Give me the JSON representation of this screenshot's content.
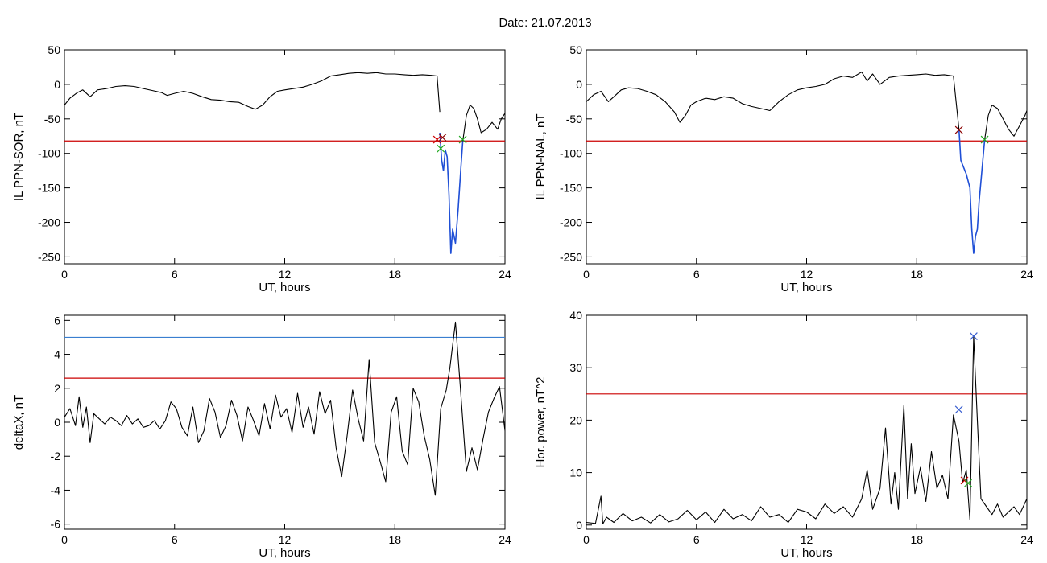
{
  "figure": {
    "title": "Date:  21.07.2013"
  },
  "chart_data": [
    {
      "type": "line",
      "panel": "top-left",
      "xlabel": "UT, hours",
      "ylabel": "IL PPN-SOR, nT",
      "xlim": [
        0,
        24
      ],
      "ylim": [
        -260,
        50
      ],
      "xticks": [
        0,
        6,
        12,
        18,
        24
      ],
      "yticks": [
        50,
        0,
        -50,
        -100,
        -150,
        -200,
        -250
      ],
      "grid": false,
      "series": [
        {
          "color": "#000000",
          "x": [
            0,
            0.3,
            0.7,
            1.0,
            1.4,
            1.8,
            2.3,
            2.8,
            3.3,
            3.8,
            4.3,
            4.8,
            5.3,
            5.6,
            6.0,
            6.5,
            7.0,
            7.5,
            8.0,
            8.5,
            9.0,
            9.5,
            10.0,
            10.4,
            10.8,
            11.2,
            11.6,
            12.0,
            12.5,
            13.0,
            13.5,
            14.0,
            14.5,
            15.0,
            15.5,
            16.0,
            16.5,
            17.0,
            17.5,
            18.0,
            18.5,
            19.0,
            19.5,
            20.0,
            20.3,
            20.45
          ],
          "values": [
            -30,
            -20,
            -12,
            -8,
            -18,
            -8,
            -6,
            -3,
            -2,
            -3,
            -6,
            -9,
            -12,
            -16,
            -13,
            -10,
            -13,
            -18,
            -22,
            -23,
            -25,
            -26,
            -32,
            -36,
            -30,
            -18,
            -10,
            -8,
            -6,
            -4,
            0,
            5,
            12,
            14,
            16,
            17,
            16,
            17,
            15,
            15,
            14,
            13,
            14,
            13,
            12,
            -40
          ]
        },
        {
          "color": "#1f4fd6",
          "x": [
            20.45,
            20.55,
            20.65,
            20.75,
            20.85,
            20.95,
            21.05,
            21.15,
            21.3,
            21.45,
            21.6,
            21.7
          ],
          "values": [
            -70,
            -110,
            -125,
            -95,
            -105,
            -160,
            -245,
            -210,
            -230,
            -180,
            -120,
            -82
          ]
        },
        {
          "color": "#000000",
          "x": [
            21.7,
            21.9,
            22.1,
            22.3,
            22.5,
            22.7,
            23.0,
            23.3,
            23.6,
            23.8,
            24.0
          ],
          "values": [
            -82,
            -45,
            -30,
            -35,
            -50,
            -70,
            -65,
            -55,
            -65,
            -50,
            -42
          ]
        }
      ],
      "threshold_lines": [
        {
          "y": -82,
          "color": "#cc0000"
        }
      ],
      "markers": [
        {
          "x": 20.3,
          "y": -80,
          "color": "#cc0000"
        },
        {
          "x": 20.6,
          "y": -77,
          "color": "#8b0000"
        },
        {
          "x": 20.5,
          "y": -93,
          "color": "#22aa22"
        },
        {
          "x": 21.7,
          "y": -80,
          "color": "#22aa22"
        }
      ]
    },
    {
      "type": "line",
      "panel": "top-right",
      "xlabel": "UT, hours",
      "ylabel": "IL PPN-NAL, nT",
      "xlim": [
        0,
        24
      ],
      "ylim": [
        -260,
        50
      ],
      "xticks": [
        0,
        6,
        12,
        18,
        24
      ],
      "yticks": [
        50,
        0,
        -50,
        -100,
        -150,
        -200,
        -250
      ],
      "grid": false,
      "series": [
        {
          "color": "#000000",
          "x": [
            0,
            0.4,
            0.8,
            1.2,
            1.5,
            1.9,
            2.3,
            2.8,
            3.3,
            3.8,
            4.3,
            4.8,
            5.1,
            5.4,
            5.7,
            6.0,
            6.5,
            7.0,
            7.5,
            8.0,
            8.5,
            9.0,
            9.5,
            10.0,
            10.5,
            11.0,
            11.5,
            12.0,
            12.5,
            13.0,
            13.5,
            14.0,
            14.5,
            15.0,
            15.3,
            15.6,
            16.0,
            16.5,
            17.0,
            17.5,
            18.0,
            18.5,
            19.0,
            19.5,
            20.0,
            20.3
          ],
          "values": [
            -25,
            -15,
            -10,
            -25,
            -18,
            -8,
            -5,
            -6,
            -10,
            -15,
            -25,
            -40,
            -55,
            -45,
            -30,
            -25,
            -20,
            -22,
            -18,
            -20,
            -28,
            -32,
            -35,
            -38,
            -25,
            -15,
            -8,
            -5,
            -3,
            0,
            8,
            12,
            10,
            18,
            5,
            15,
            0,
            10,
            12,
            13,
            14,
            15,
            13,
            14,
            12,
            -65
          ]
        },
        {
          "color": "#1f4fd6",
          "x": [
            20.3,
            20.4,
            20.55,
            20.7,
            20.9,
            21.0,
            21.1,
            21.2,
            21.3,
            21.4,
            21.6,
            21.7
          ],
          "values": [
            -65,
            -110,
            -120,
            -130,
            -150,
            -210,
            -245,
            -220,
            -210,
            -170,
            -110,
            -80
          ]
        },
        {
          "color": "#000000",
          "x": [
            21.7,
            21.9,
            22.1,
            22.4,
            22.7,
            23.0,
            23.3,
            23.6,
            23.9,
            24.0
          ],
          "values": [
            -80,
            -45,
            -30,
            -35,
            -50,
            -65,
            -75,
            -60,
            -45,
            -38
          ]
        }
      ],
      "threshold_lines": [
        {
          "y": -82,
          "color": "#cc0000"
        }
      ],
      "markers": [
        {
          "x": 20.3,
          "y": -66,
          "color": "#8b0000"
        },
        {
          "x": 21.7,
          "y": -80,
          "color": "#22aa22"
        }
      ]
    },
    {
      "type": "line",
      "panel": "bottom-left",
      "xlabel": "UT, hours",
      "ylabel": "deltaX, nT",
      "xlim": [
        0,
        24
      ],
      "ylim": [
        -6.3,
        6.3
      ],
      "xticks": [
        0,
        6,
        12,
        18,
        24
      ],
      "yticks": [
        6,
        4,
        2,
        0,
        -2,
        -4,
        -6
      ],
      "grid": false,
      "series": [
        {
          "color": "#000000",
          "x": [
            0,
            0.3,
            0.6,
            0.8,
            1.0,
            1.2,
            1.4,
            1.6,
            1.9,
            2.2,
            2.5,
            2.8,
            3.1,
            3.4,
            3.7,
            4.0,
            4.3,
            4.6,
            4.9,
            5.2,
            5.5,
            5.8,
            6.1,
            6.4,
            6.7,
            7.0,
            7.3,
            7.6,
            7.9,
            8.2,
            8.5,
            8.8,
            9.1,
            9.4,
            9.7,
            10.0,
            10.3,
            10.6,
            10.9,
            11.2,
            11.5,
            11.8,
            12.1,
            12.4,
            12.7,
            13.0,
            13.3,
            13.6,
            13.9,
            14.2,
            14.5,
            14.8,
            15.1,
            15.4,
            15.7,
            16.0,
            16.3,
            16.6,
            16.9,
            17.2,
            17.5,
            17.8,
            18.1,
            18.4,
            18.7,
            19.0,
            19.3,
            19.6,
            19.9,
            20.2,
            20.5,
            20.8,
            21.0,
            21.3,
            21.6,
            21.9,
            22.2,
            22.5,
            22.8,
            23.1,
            23.4,
            23.7,
            24.0
          ],
          "values": [
            0.3,
            0.8,
            -0.2,
            1.5,
            -0.3,
            0.9,
            -1.2,
            0.5,
            0.2,
            -0.1,
            0.3,
            0.1,
            -0.2,
            0.4,
            -0.1,
            0.2,
            -0.3,
            -0.2,
            0.1,
            -0.4,
            0.1,
            1.2,
            0.8,
            -0.3,
            -0.8,
            0.9,
            -1.2,
            -0.5,
            1.4,
            0.6,
            -0.9,
            -0.2,
            1.3,
            0.4,
            -1.1,
            0.9,
            0.1,
            -0.8,
            1.1,
            -0.4,
            1.6,
            0.3,
            0.8,
            -0.6,
            1.7,
            -0.3,
            0.9,
            -0.7,
            1.8,
            0.5,
            1.3,
            -1.5,
            -3.2,
            -0.8,
            1.9,
            0.2,
            -1.1,
            3.7,
            -1.2,
            -2.3,
            -3.5,
            0.6,
            1.5,
            -1.7,
            -2.5,
            2.0,
            1.2,
            -0.8,
            -2.2,
            -4.3,
            0.8,
            1.9,
            3.2,
            5.9,
            1.6,
            -2.9,
            -1.5,
            -2.8,
            -1.0,
            0.6,
            1.4,
            2.1,
            -0.5
          ]
        }
      ],
      "threshold_lines": [
        {
          "y": 5.0,
          "color": "#3a7fd0"
        },
        {
          "y": 2.6,
          "color": "#cc0000"
        }
      ]
    },
    {
      "type": "line",
      "panel": "bottom-right",
      "xlabel": "UT, hours",
      "ylabel": "Hor. power, nT^2",
      "xlim": [
        0,
        24
      ],
      "ylim": [
        -0.8,
        40
      ],
      "xticks": [
        0,
        6,
        12,
        18,
        24
      ],
      "yticks": [
        40,
        30,
        20,
        10,
        0
      ],
      "grid": false,
      "series": [
        {
          "color": "#000000",
          "x": [
            0,
            0.5,
            0.8,
            0.9,
            1.1,
            1.5,
            2.0,
            2.5,
            3.0,
            3.5,
            4.0,
            4.5,
            5.0,
            5.5,
            6.0,
            6.5,
            7.0,
            7.5,
            8.0,
            8.5,
            9.0,
            9.5,
            10.0,
            10.5,
            11.0,
            11.5,
            12.0,
            12.5,
            13.0,
            13.5,
            14.0,
            14.5,
            15.0,
            15.3,
            15.6,
            16.0,
            16.3,
            16.6,
            16.8,
            17.0,
            17.3,
            17.5,
            17.7,
            17.9,
            18.2,
            18.5,
            18.8,
            19.1,
            19.4,
            19.7,
            20.0,
            20.3,
            20.5,
            20.7,
            20.9,
            21.1,
            21.3,
            21.5,
            21.8,
            22.1,
            22.4,
            22.7,
            23.0,
            23.3,
            23.6,
            24.0
          ],
          "values": [
            0.5,
            0.3,
            5.5,
            0.2,
            1.5,
            0.5,
            2.2,
            0.8,
            1.5,
            0.4,
            2.0,
            0.6,
            1.2,
            2.8,
            1.0,
            2.5,
            0.5,
            3.0,
            1.2,
            2.0,
            0.8,
            3.5,
            1.5,
            2.0,
            0.5,
            3.0,
            2.5,
            1.2,
            4.0,
            2.2,
            3.5,
            1.5,
            5.0,
            10.5,
            3.0,
            7.0,
            18.5,
            4.0,
            10.0,
            3.0,
            22.8,
            5.0,
            15.5,
            6.0,
            11.0,
            4.5,
            14.0,
            7.0,
            9.5,
            5.0,
            21.0,
            16.0,
            8.0,
            10.5,
            1.0,
            36.0,
            20.0,
            5.0,
            3.5,
            2.0,
            4.0,
            1.5,
            2.5,
            3.5,
            2.0,
            5.0
          ]
        }
      ],
      "threshold_lines": [
        {
          "y": 25,
          "color": "#cc0000"
        }
      ],
      "markers": [
        {
          "x": 20.3,
          "y": 22.0,
          "color": "#3a5fd0"
        },
        {
          "x": 21.1,
          "y": 36.0,
          "color": "#3a5fd0"
        },
        {
          "x": 20.6,
          "y": 8.5,
          "color": "#cc0000"
        },
        {
          "x": 20.8,
          "y": 8.0,
          "color": "#22aa22"
        }
      ]
    }
  ]
}
